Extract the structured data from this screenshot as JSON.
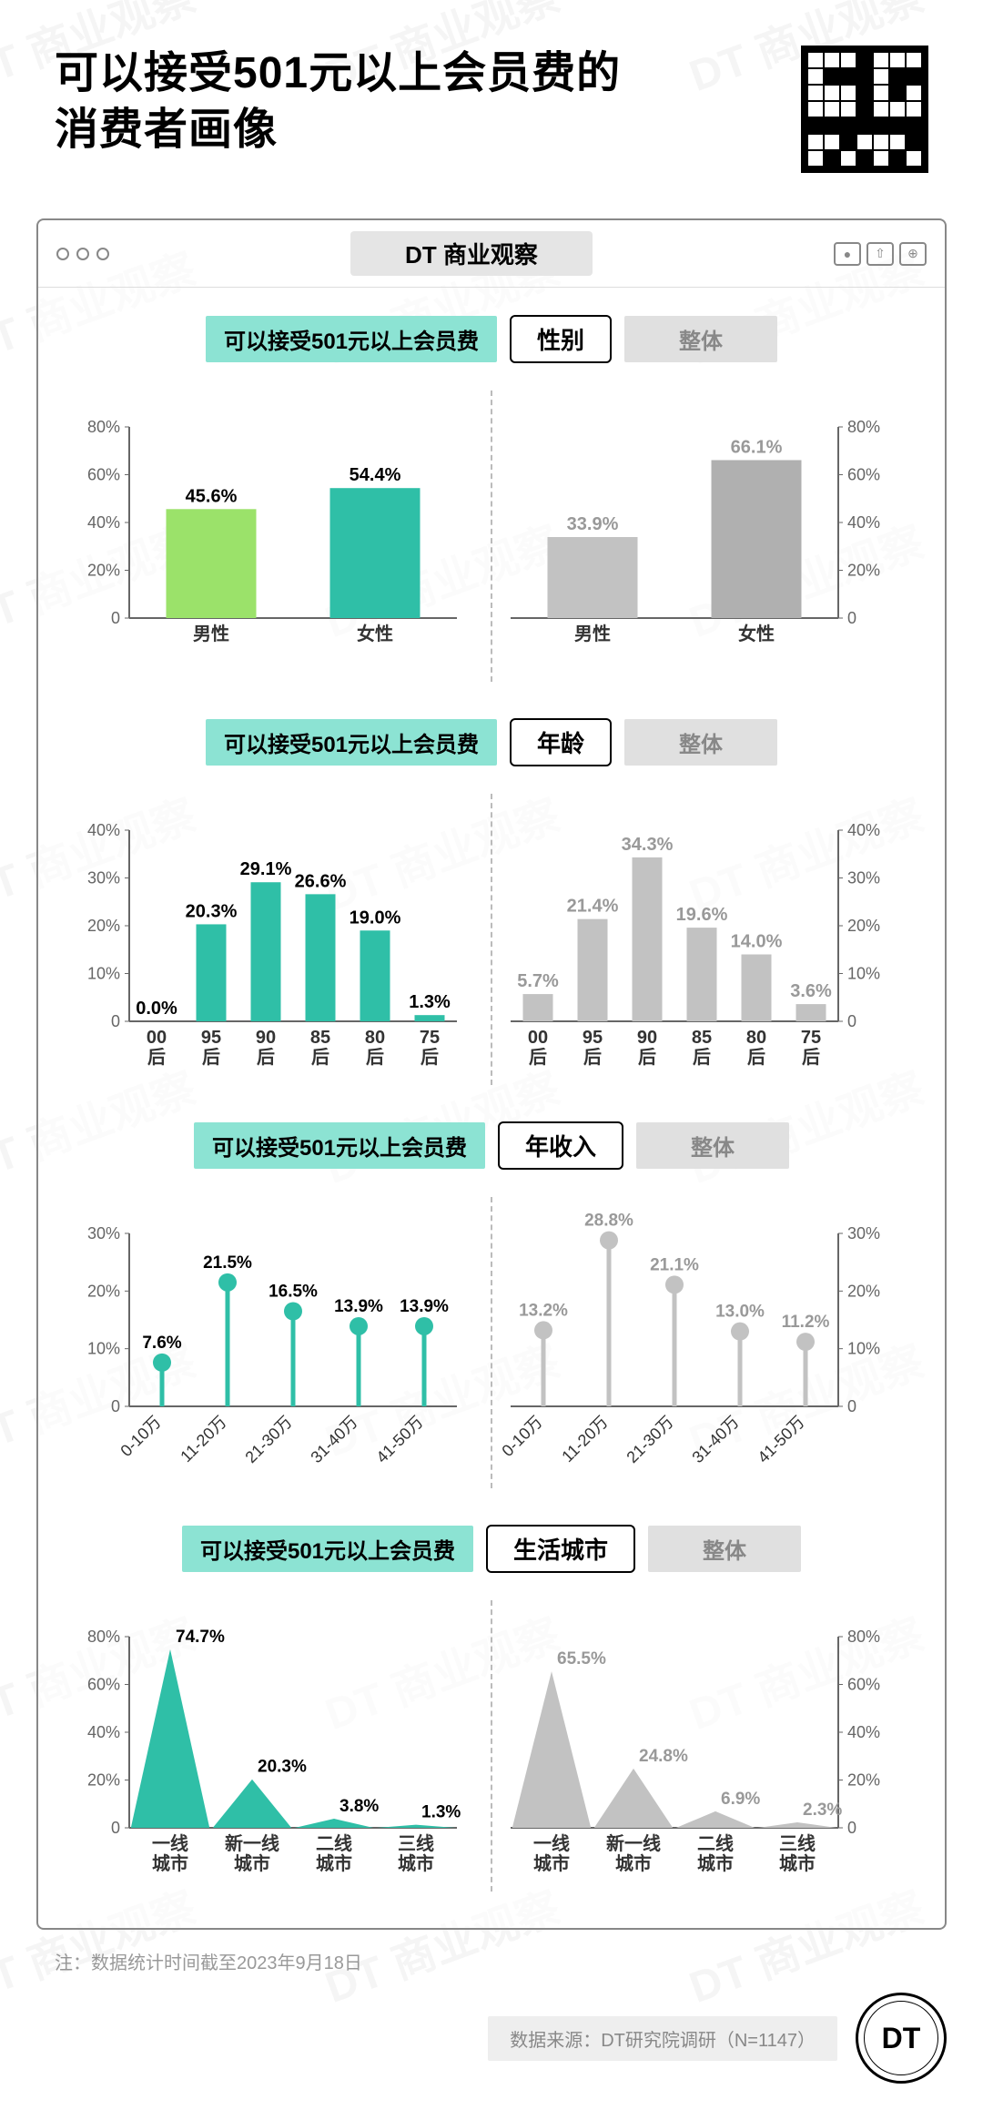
{
  "title_line1": "可以接受501元以上会员费的",
  "title_line2": "消费者画像",
  "window_title": "DT 商业观察",
  "watermark_text": "DT 商业观察",
  "colors": {
    "teal": "#2fbfa7",
    "teal_light": "#8ce3d3",
    "green_bar": "#9be26a",
    "grey_bar": "#c2c2c2",
    "grey_text": "#999999",
    "axis": "#666666",
    "black": "#000000"
  },
  "sections": [
    {
      "left_tag": "可以接受501元以上会员费",
      "mid_tag": "性别",
      "right_tag": "整体",
      "type": "bar",
      "ymax": 80,
      "ystep": 20,
      "left": {
        "categories": [
          "男性",
          "女性"
        ],
        "values": [
          45.6,
          54.4
        ],
        "value_labels": [
          "45.6%",
          "54.4%"
        ],
        "colors": [
          "#9be26a",
          "#2fbfa7"
        ],
        "axis_side": "left"
      },
      "right": {
        "categories": [
          "男性",
          "女性"
        ],
        "values": [
          33.9,
          66.1
        ],
        "value_labels": [
          "33.9%",
          "66.1%"
        ],
        "colors": [
          "#c2c2c2",
          "#b0b0b0"
        ],
        "axis_side": "right"
      }
    },
    {
      "left_tag": "可以接受501元以上会员费",
      "mid_tag": "年龄",
      "right_tag": "整体",
      "type": "bar",
      "ymax": 40,
      "ystep": 10,
      "left": {
        "categories": [
          "00\n后",
          "95\n后",
          "90\n后",
          "85\n后",
          "80\n后",
          "75\n后"
        ],
        "values": [
          0.0,
          20.3,
          29.1,
          26.6,
          19.0,
          1.3
        ],
        "value_labels": [
          "0.0%",
          "20.3%",
          "29.1%",
          "26.6%",
          "19.0%",
          "1.3%"
        ],
        "color": "#2fbfa7",
        "axis_side": "left"
      },
      "right": {
        "categories": [
          "00\n后",
          "95\n后",
          "90\n后",
          "85\n后",
          "80\n后",
          "75\n后"
        ],
        "values": [
          5.7,
          21.4,
          34.3,
          19.6,
          14.0,
          3.6
        ],
        "value_labels": [
          "5.7%",
          "21.4%",
          "34.3%",
          "19.6%",
          "14.0%",
          "3.6%"
        ],
        "color": "#c2c2c2",
        "axis_side": "right"
      }
    },
    {
      "left_tag": "可以接受501元以上会员费",
      "mid_tag": "年收入",
      "right_tag": "整体",
      "type": "lollipop",
      "ymax": 30,
      "ystep": 10,
      "left": {
        "categories": [
          "0-10万",
          "11-20万",
          "21-30万",
          "31-40万",
          "41-50万"
        ],
        "values": [
          7.6,
          21.5,
          16.5,
          13.9,
          13.9
        ],
        "value_labels": [
          "7.6%",
          "21.5%",
          "16.5%",
          "13.9%",
          "13.9%"
        ],
        "color": "#2fbfa7",
        "axis_side": "left",
        "rotate_labels": true
      },
      "right": {
        "categories": [
          "0-10万",
          "11-20万",
          "21-30万",
          "31-40万",
          "41-50万"
        ],
        "values": [
          13.2,
          28.8,
          21.1,
          13.0,
          11.2
        ],
        "value_labels": [
          "13.2%",
          "28.8%",
          "21.1%",
          "13.0%",
          "11.2%"
        ],
        "color": "#c2c2c2",
        "axis_side": "right",
        "rotate_labels": true
      }
    },
    {
      "left_tag": "可以接受501元以上会员费",
      "mid_tag": "生活城市",
      "right_tag": "整体",
      "type": "area",
      "ymax": 80,
      "ystep": 20,
      "left": {
        "categories": [
          "一线\n城市",
          "新一线\n城市",
          "二线\n城市",
          "三线\n城市"
        ],
        "values": [
          74.7,
          20.3,
          3.8,
          1.3
        ],
        "value_labels": [
          "74.7%",
          "20.3%",
          "3.8%",
          "1.3%"
        ],
        "color": "#2fbfa7",
        "axis_side": "left"
      },
      "right": {
        "categories": [
          "一线\n城市",
          "新一线\n城市",
          "二线\n城市",
          "三线\n城市"
        ],
        "values": [
          65.5,
          24.8,
          6.9,
          2.3
        ],
        "value_labels": [
          "65.5%",
          "24.8%",
          "6.9%",
          "2.3%"
        ],
        "color": "#c2c2c2",
        "axis_side": "right"
      }
    }
  ],
  "footer_note": "注：数据统计时间截至2023年9月18日",
  "footer_source": "数据来源：DT研究院调研（N=1147）",
  "dt_badge": "DT"
}
